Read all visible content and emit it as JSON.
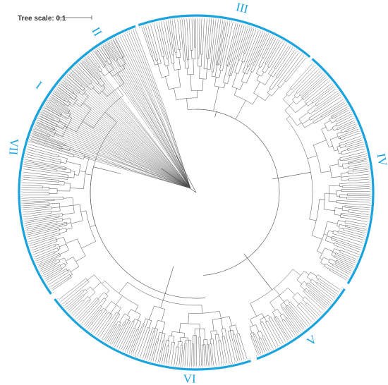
{
  "scale_bar": {
    "label": "Tree scale: 0.1"
  },
  "colors": {
    "clade_ring": "#1aa3dd",
    "branches": "#4d4d4d",
    "text": "#333333"
  },
  "tree_layout": "circular",
  "clades": [
    {
      "id": "clade-1",
      "label": "I"
    },
    {
      "id": "clade-2",
      "label": "II"
    },
    {
      "id": "clade-3",
      "label": "III"
    },
    {
      "id": "clade-4",
      "label": "IV"
    },
    {
      "id": "clade-5",
      "label": "V"
    },
    {
      "id": "clade-6",
      "label": "VI"
    },
    {
      "id": "clade-7",
      "label": "VII"
    }
  ]
}
